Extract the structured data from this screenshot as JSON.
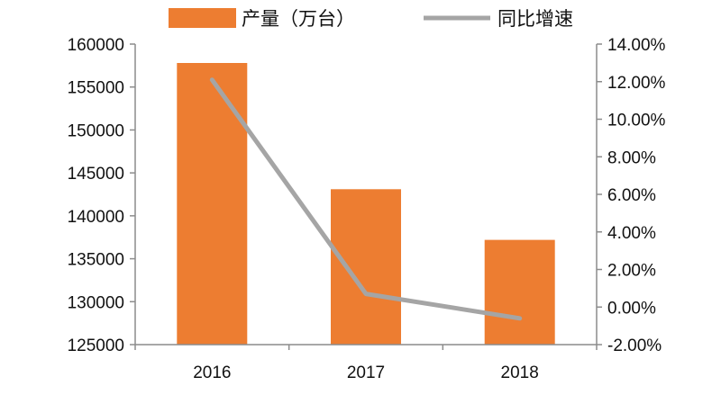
{
  "chart_data": {
    "type": "bar",
    "categories": [
      "2016",
      "2017",
      "2018"
    ],
    "series": [
      {
        "name": "产量（万台）",
        "type": "bar",
        "axis": "left",
        "values": [
          157800,
          143100,
          137200
        ]
      },
      {
        "name": "同比增速",
        "type": "line",
        "axis": "right",
        "values": [
          12.1,
          0.7,
          -0.6
        ]
      }
    ],
    "y_left": {
      "lim": [
        125000,
        160000
      ],
      "ticks": [
        "125000",
        "130000",
        "135000",
        "140000",
        "145000",
        "150000",
        "155000",
        "160000"
      ]
    },
    "y_right": {
      "lim": [
        -2,
        14
      ],
      "unit": "%",
      "ticks": [
        "-2.00%",
        "0.00%",
        "2.00%",
        "4.00%",
        "6.00%",
        "8.00%",
        "10.00%",
        "12.00%",
        "14.00%"
      ]
    },
    "grid": false,
    "legend": "top",
    "colors": {
      "bar": "#ED7D31",
      "line": "#A5A5A5",
      "axis": "#8C8C8C"
    }
  }
}
